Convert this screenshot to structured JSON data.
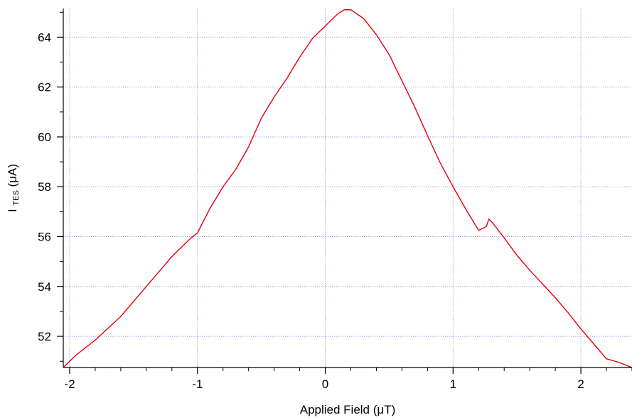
{
  "chart_data": {
    "type": "line",
    "title": "",
    "xlabel": "Applied Field (μT)",
    "ylabel": {
      "main": "I",
      "sub": "TES",
      "rest": " (μA)"
    },
    "xlim": [
      -2.05,
      2.4
    ],
    "ylim": [
      50.75,
      65.15
    ],
    "grid": true,
    "colors": {
      "line": "#e8000b",
      "grid": "#9a9af0",
      "axis": "#000000"
    },
    "x_ticks": [
      {
        "value": -2,
        "label": "-2"
      },
      {
        "value": -1,
        "label": "-1"
      },
      {
        "value": 0,
        "label": "0"
      },
      {
        "value": 1,
        "label": "1"
      },
      {
        "value": 2,
        "label": "2"
      }
    ],
    "y_ticks": [
      {
        "value": 52,
        "label": "52"
      },
      {
        "value": 54,
        "label": "54"
      },
      {
        "value": 56,
        "label": "56"
      },
      {
        "value": 58,
        "label": "58"
      },
      {
        "value": 60,
        "label": "60"
      },
      {
        "value": 62,
        "label": "62"
      },
      {
        "value": 64,
        "label": "64"
      }
    ],
    "series": [
      {
        "x": [
          -2.05,
          -1.95,
          -1.8,
          -1.6,
          -1.4,
          -1.2,
          -1.05,
          -1.0,
          -0.9,
          -0.8,
          -0.7,
          -0.6,
          -0.5,
          -0.4,
          -0.3,
          -0.2,
          -0.1,
          -0.05,
          0.0,
          0.05,
          0.1,
          0.15,
          0.2,
          0.3,
          0.4,
          0.5,
          0.6,
          0.7,
          0.8,
          0.9,
          1.0,
          1.1,
          1.2,
          1.26,
          1.28,
          1.31,
          1.4,
          1.5,
          1.6,
          1.7,
          1.8,
          1.9,
          2.0,
          2.1,
          2.2,
          2.3,
          2.4
        ],
        "values": [
          50.75,
          51.25,
          51.85,
          52.8,
          54.0,
          55.2,
          55.95,
          56.15,
          57.15,
          58.0,
          58.7,
          59.6,
          60.75,
          61.6,
          62.35,
          63.2,
          63.95,
          64.2,
          64.45,
          64.7,
          64.95,
          65.1,
          65.1,
          64.75,
          64.1,
          63.3,
          62.25,
          61.2,
          60.05,
          58.95,
          58.0,
          57.1,
          56.25,
          56.4,
          56.7,
          56.55,
          55.95,
          55.25,
          54.65,
          54.1,
          53.55,
          52.95,
          52.3,
          51.7,
          51.1,
          50.95,
          50.75
        ]
      }
    ]
  }
}
